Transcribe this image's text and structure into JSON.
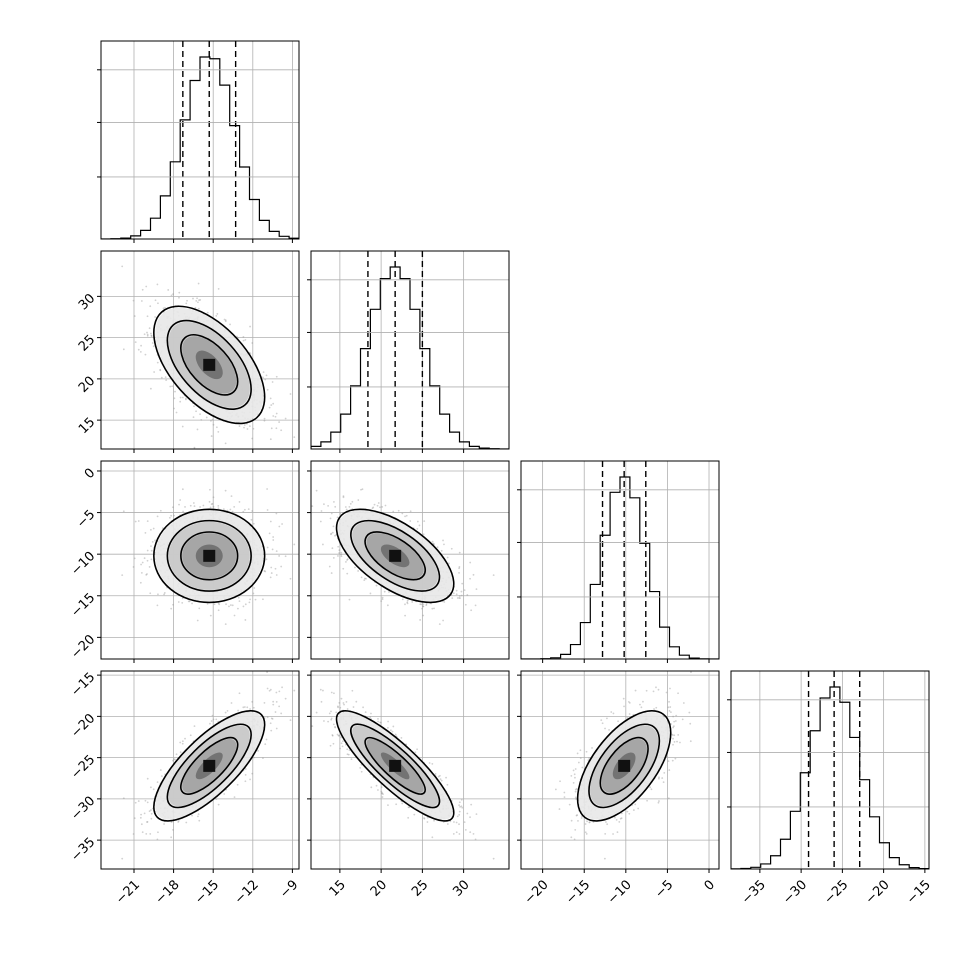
{
  "chart_data": {
    "type": "corner",
    "grid": true,
    "colors": {
      "line": "#000000",
      "grid": "#b0b0b0",
      "points": "#9a9a9a"
    },
    "params": [
      {
        "range": [
          -23.5,
          -8.5
        ],
        "ticks": [
          -21,
          -18,
          -15,
          -12,
          -9
        ],
        "tick_labels": [
          "−21",
          "−18",
          "−15",
          "−12",
          "−9"
        ],
        "mean": -15.3,
        "sd": 1.95,
        "quantiles": [
          -17.3,
          -15.3,
          -13.3
        ]
      },
      {
        "range": [
          11.5,
          35.5
        ],
        "ticks": [
          15,
          20,
          25,
          30
        ],
        "tick_labels": [
          "15",
          "20",
          "25",
          "30"
        ],
        "mean": 21.7,
        "sd": 3.3,
        "quantiles": [
          18.4,
          21.7,
          25.0
        ]
      },
      {
        "range": [
          -22.6,
          1.2
        ],
        "ticks": [
          -20,
          -15,
          -10,
          -5,
          0
        ],
        "tick_labels": [
          "−20",
          "−15",
          "−10",
          "−5",
          "0"
        ],
        "mean": -10.2,
        "sd": 2.6,
        "quantiles": [
          -12.8,
          -10.2,
          -7.6
        ]
      },
      {
        "range": [
          -38.5,
          -14.5
        ],
        "ticks": [
          -35,
          -30,
          -25,
          -20,
          -15
        ],
        "tick_labels": [
          "−35",
          "−30",
          "−25",
          "−20",
          "−15"
        ],
        "mean": -26.0,
        "sd": 3.1,
        "quantiles": [
          -29.1,
          -26.0,
          -22.9
        ]
      }
    ],
    "correlations": [
      [
        1.0,
        -0.55,
        0.0,
        0.75
      ],
      [
        -0.55,
        1.0,
        -0.6,
        -0.85
      ],
      [
        0.0,
        -0.6,
        1.0,
        0.6
      ],
      [
        0.75,
        -0.85,
        0.6,
        1.0
      ]
    ],
    "histogram_bins": 20,
    "contour_levels": [
      0.5,
      1.0,
      1.5,
      2.0
    ],
    "n_samples_shown": 1500
  }
}
